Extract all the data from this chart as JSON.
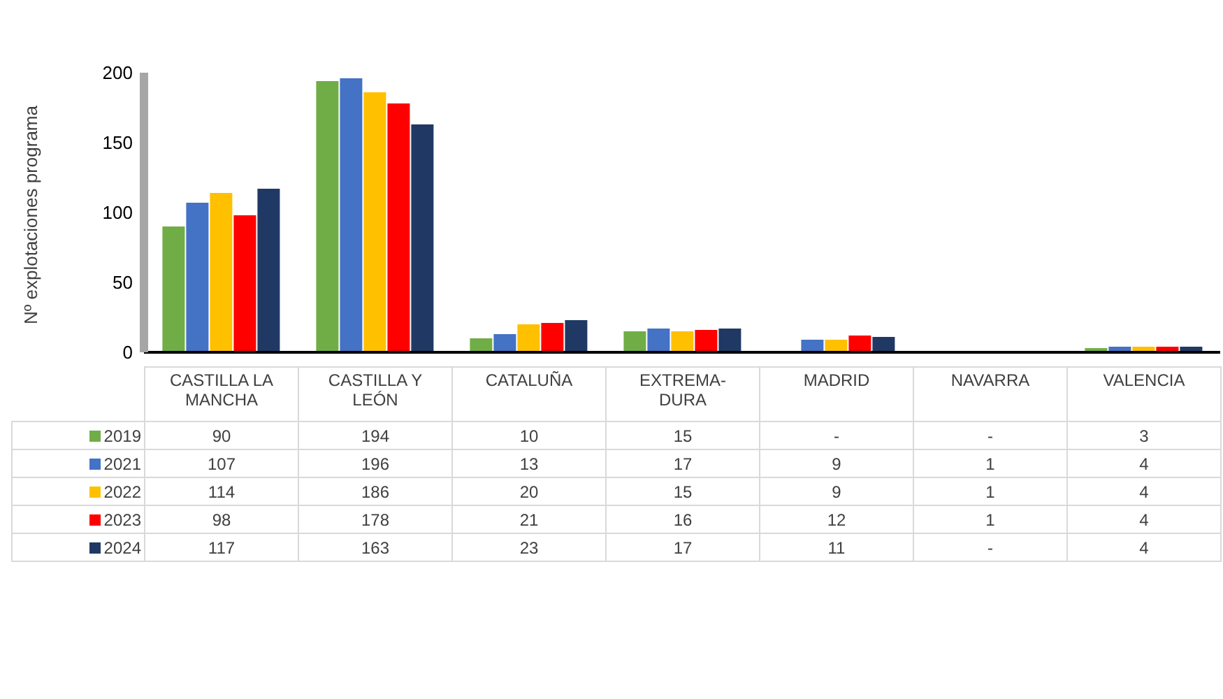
{
  "chart_data": {
    "type": "bar",
    "ylabel": "Nº explotaciones programa",
    "categories": [
      "CASTILLA LA MANCHA",
      "CASTILLA Y LEÓN",
      "CATALUÑA",
      "EXTREMA-DURA",
      "MADRID",
      "NAVARRA",
      "VALENCIA"
    ],
    "series": [
      {
        "name": "2019",
        "color": "#70ad47",
        "values": [
          90,
          194,
          10,
          15,
          null,
          null,
          3
        ],
        "value_labels": [
          "90",
          "194",
          "10",
          "15",
          "-",
          "-",
          "3"
        ]
      },
      {
        "name": "2021",
        "color": "#4472c4",
        "values": [
          107,
          196,
          13,
          17,
          9,
          1,
          4
        ],
        "value_labels": [
          "107",
          "196",
          "13",
          "17",
          "9",
          "1",
          "4"
        ]
      },
      {
        "name": "2022",
        "color": "#ffc000",
        "values": [
          114,
          186,
          20,
          15,
          9,
          1,
          4
        ],
        "value_labels": [
          "114",
          "186",
          "20",
          "15",
          "9",
          "1",
          "4"
        ]
      },
      {
        "name": "2023",
        "color": "#ff0000",
        "values": [
          98,
          178,
          21,
          16,
          12,
          1,
          4
        ],
        "value_labels": [
          "98",
          "178",
          "21",
          "16",
          "12",
          "1",
          "4"
        ]
      },
      {
        "name": "2024",
        "color": "#203864",
        "values": [
          117,
          163,
          23,
          17,
          11,
          null,
          4
        ],
        "value_labels": [
          "117",
          "163",
          "23",
          "17",
          "11",
          "-",
          "4"
        ]
      }
    ],
    "ylim": [
      0,
      200
    ],
    "yticks": [
      0,
      50,
      100,
      150,
      200
    ],
    "grid": false,
    "legend": "bottom left"
  }
}
